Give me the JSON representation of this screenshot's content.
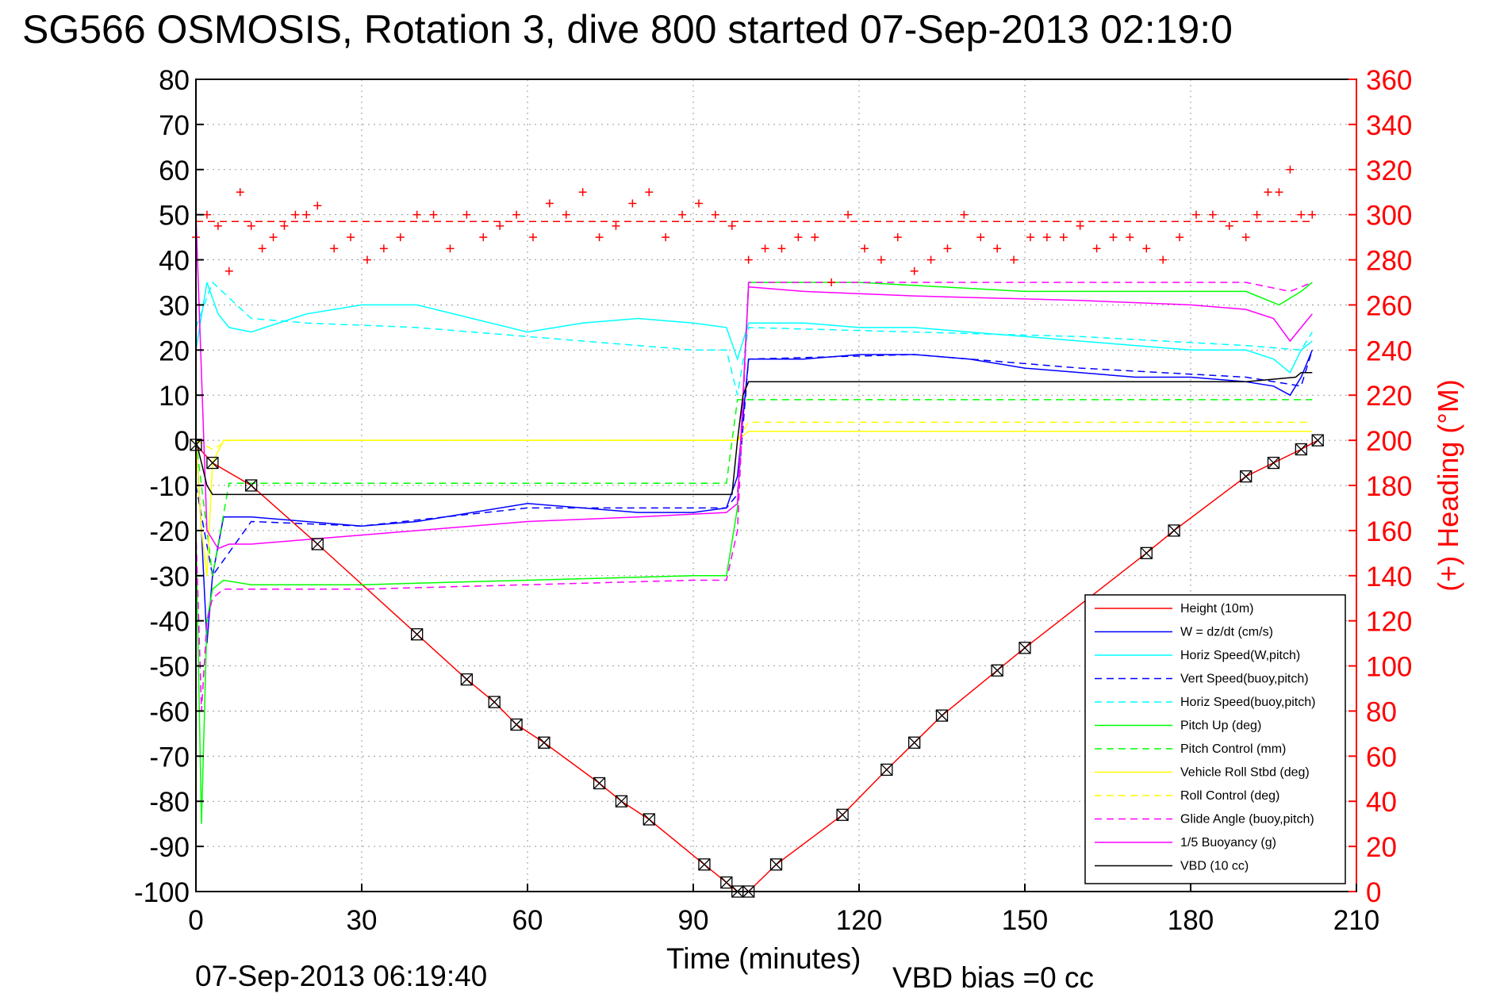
{
  "title": "SG566 OSMOSIS, Rotation 3, dive 800 started 07-Sep-2013 02:19:0",
  "footer": {
    "timestamp": "07-Sep-2013 06:19:40",
    "vbd_bias": "VBD bias =0 cc"
  },
  "colors": {
    "height": "#ff0000",
    "w": "#0000ff",
    "horiz": "#00ffff",
    "pitch": "#00ff00",
    "roll": "#ffff00",
    "glide": "#ff00ff",
    "vbd": "#000000",
    "heading": "#ff0000"
  },
  "chart_data": {
    "type": "line",
    "xlabel": "Time (minutes)",
    "ylabel_left": "",
    "ylabel_right": "(+) Heading (°M)",
    "xlim": [
      0,
      210
    ],
    "ylim_left": [
      -100,
      80
    ],
    "ylim_right": [
      0,
      360
    ],
    "x_ticks": [
      0,
      30,
      60,
      90,
      120,
      150,
      180,
      210
    ],
    "y_ticks_left": [
      80,
      70,
      60,
      50,
      40,
      30,
      20,
      10,
      0,
      -10,
      -20,
      -30,
      -40,
      -50,
      -60,
      -70,
      -80,
      -90,
      -100
    ],
    "y_ticks_right": [
      360,
      340,
      320,
      300,
      280,
      260,
      240,
      220,
      200,
      180,
      160,
      140,
      120,
      100,
      80,
      60,
      40,
      20,
      0
    ],
    "grid": true,
    "legend_position": "lower-right",
    "heading_reference": 297,
    "series": [
      {
        "name": "Height (10m)",
        "color": "#ff0000",
        "style": "solid",
        "x": [
          0,
          3,
          10,
          22,
          40,
          49,
          54,
          58,
          63,
          73,
          77,
          82,
          92,
          96,
          98,
          100,
          105,
          117,
          125,
          130,
          135,
          145,
          150,
          172,
          177,
          190,
          195,
          200,
          203
        ],
        "y": [
          -1,
          -5,
          -10,
          -23,
          -43,
          -53,
          -58,
          -63,
          -67,
          -76,
          -80,
          -84,
          -94,
          -98,
          -100,
          -100,
          -94,
          -83,
          -73,
          -67,
          -61,
          -51,
          -46,
          -25,
          -20,
          -8,
          -5,
          -2,
          0
        ]
      },
      {
        "name": "W = dz/dt (cm/s)",
        "color": "#0000ff",
        "style": "solid",
        "x": [
          0,
          1,
          2,
          3,
          5,
          10,
          20,
          30,
          40,
          50,
          60,
          70,
          80,
          90,
          96,
          98,
          100,
          110,
          120,
          130,
          140,
          150,
          160,
          170,
          180,
          190,
          195,
          198,
          200,
          202
        ],
        "y": [
          0,
          -20,
          -45,
          -30,
          -17,
          -17,
          -18,
          -19,
          -18,
          -16,
          -14,
          -15,
          -16,
          -16,
          -15,
          -8,
          18,
          18,
          19,
          19,
          18,
          16,
          15,
          14,
          14,
          13,
          12,
          10,
          14,
          20
        ]
      },
      {
        "name": "Horiz Speed(W,pitch)",
        "color": "#00ffff",
        "style": "solid",
        "x": [
          0,
          2,
          4,
          6,
          10,
          20,
          30,
          40,
          50,
          60,
          70,
          80,
          90,
          96,
          98,
          100,
          110,
          120,
          130,
          140,
          150,
          160,
          170,
          180,
          190,
          195,
          198,
          200,
          202
        ],
        "y": [
          20,
          35,
          28,
          25,
          24,
          28,
          30,
          30,
          27,
          24,
          26,
          27,
          26,
          25,
          18,
          26,
          26,
          25,
          25,
          24,
          23,
          22,
          21,
          20,
          20,
          18,
          15,
          20,
          22
        ]
      },
      {
        "name": "Vert Speed(buoy,pitch)",
        "color": "#0000ff",
        "style": "dashed",
        "x": [
          0,
          3,
          10,
          30,
          60,
          90,
          96,
          98,
          100,
          130,
          160,
          190,
          200,
          202
        ],
        "y": [
          -10,
          -30,
          -18,
          -19,
          -15,
          -15,
          -15,
          -12,
          18,
          19,
          16,
          14,
          12,
          20
        ]
      },
      {
        "name": "Horiz Speed(buoy,pitch)",
        "color": "#00ffff",
        "style": "dashed",
        "x": [
          0,
          3,
          10,
          20,
          40,
          60,
          80,
          90,
          96,
          98,
          100,
          130,
          160,
          190,
          200,
          202
        ],
        "y": [
          25,
          35,
          27,
          26,
          25,
          23,
          21,
          20,
          20,
          10,
          25,
          24,
          23,
          21,
          20,
          24
        ]
      },
      {
        "name": "Pitch Up (deg)",
        "color": "#00ff00",
        "style": "solid",
        "x": [
          0,
          1,
          2,
          3,
          5,
          10,
          30,
          60,
          90,
          96,
          98,
          100,
          120,
          150,
          180,
          190,
          196,
          200,
          202
        ],
        "y": [
          -20,
          -85,
          -40,
          -33,
          -31,
          -32,
          -32,
          -31,
          -30,
          -30,
          -15,
          35,
          35,
          33,
          33,
          33,
          30,
          33,
          35
        ]
      },
      {
        "name": "Pitch Control (mm)",
        "color": "#00ff00",
        "style": "dashed",
        "x": [
          0,
          3,
          6,
          96,
          98,
          100,
          202
        ],
        "y": [
          0,
          -30,
          -9.5,
          -9.5,
          9,
          9,
          9
        ]
      },
      {
        "name": "Vehicle Roll Stbd (deg)",
        "color": "#ffff00",
        "style": "solid",
        "x": [
          0,
          1,
          2,
          3,
          5,
          10,
          30,
          60,
          90,
          96,
          98,
          100,
          130,
          160,
          190,
          200,
          202
        ],
        "y": [
          0,
          -20,
          -30,
          -5,
          0,
          0,
          0,
          0,
          0,
          0,
          0,
          2,
          2,
          2,
          2,
          2,
          2
        ]
      },
      {
        "name": "Roll Control (deg)",
        "color": "#ffff00",
        "style": "dashed",
        "x": [
          0,
          3,
          6,
          96,
          98,
          100,
          202
        ],
        "y": [
          0,
          -2,
          0,
          0,
          0,
          4,
          4
        ]
      },
      {
        "name": "Glide Angle (buoy,pitch)",
        "color": "#ff00ff",
        "style": "dashed",
        "x": [
          0,
          1,
          2,
          3,
          5,
          10,
          30,
          60,
          90,
          96,
          98,
          100,
          130,
          160,
          190,
          198,
          202
        ],
        "y": [
          -20,
          -60,
          -40,
          -35,
          -33,
          -33,
          -33,
          -32,
          -31,
          -31,
          -20,
          35,
          35,
          35,
          35,
          33,
          35
        ]
      },
      {
        "name": "1/5 Buoyancy (g)",
        "color": "#ff00ff",
        "style": "solid",
        "x": [
          0,
          2,
          4,
          6,
          10,
          20,
          40,
          60,
          80,
          96,
          98,
          100,
          110,
          130,
          160,
          180,
          190,
          195,
          198,
          200,
          202
        ],
        "y": [
          50,
          -20,
          -24,
          -23,
          -23,
          -22,
          -20,
          -18,
          -17,
          -16,
          -14,
          34,
          33,
          32,
          31,
          30,
          29,
          27,
          22,
          25,
          28
        ]
      },
      {
        "name": "VBD (10 cc)",
        "color": "#000000",
        "style": "solid",
        "x": [
          0,
          1,
          2,
          3,
          96,
          97,
          98,
          99,
          100,
          190,
          199,
          200,
          202
        ],
        "y": [
          0,
          -5,
          -10,
          -12,
          -12,
          -12,
          0,
          10,
          13,
          13,
          14,
          15,
          15
        ]
      }
    ],
    "heading_series": {
      "name": "Heading",
      "color": "#ff0000",
      "axis": "right",
      "x": [
        0,
        2,
        4,
        6,
        8,
        10,
        12,
        14,
        16,
        18,
        20,
        22,
        25,
        28,
        31,
        34,
        37,
        40,
        43,
        46,
        49,
        52,
        55,
        58,
        61,
        64,
        67,
        70,
        73,
        76,
        79,
        82,
        85,
        88,
        91,
        94,
        97,
        100,
        103,
        106,
        109,
        112,
        115,
        118,
        121,
        124,
        127,
        130,
        133,
        136,
        139,
        142,
        145,
        148,
        151,
        154,
        157,
        160,
        163,
        166,
        169,
        172,
        175,
        178,
        181,
        184,
        187,
        190,
        192,
        194,
        196,
        198,
        200,
        202
      ],
      "y": [
        290,
        300,
        295,
        275,
        310,
        295,
        285,
        290,
        295,
        300,
        300,
        304,
        285,
        290,
        280,
        285,
        290,
        300,
        300,
        285,
        300,
        290,
        295,
        300,
        290,
        305,
        300,
        310,
        290,
        295,
        305,
        310,
        290,
        300,
        305,
        300,
        295,
        280,
        285,
        285,
        290,
        290,
        270,
        300,
        285,
        280,
        290,
        275,
        280,
        285,
        300,
        290,
        285,
        280,
        290,
        290,
        290,
        295,
        285,
        290,
        290,
        285,
        280,
        290,
        300,
        300,
        295,
        290,
        300,
        310,
        310,
        320,
        300,
        300
      ]
    }
  }
}
